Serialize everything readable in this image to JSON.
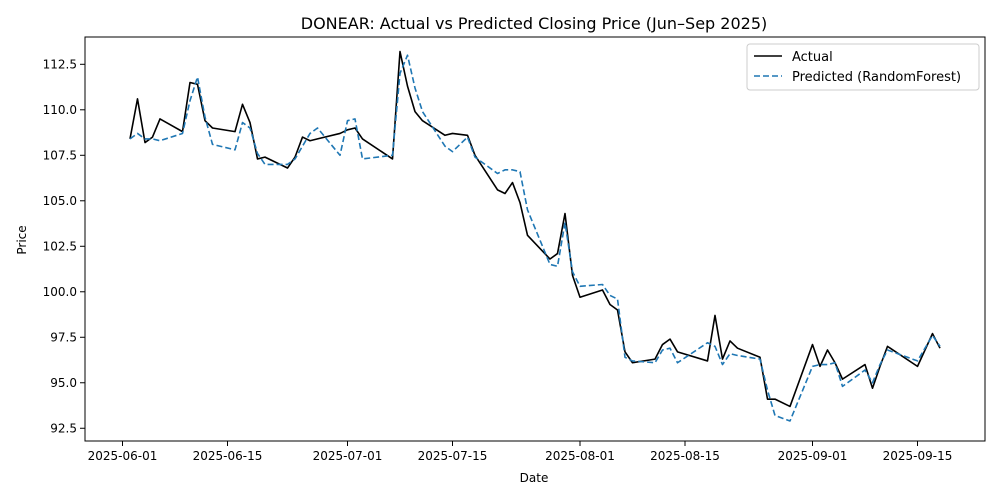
{
  "chart_data": {
    "type": "line",
    "title": "DONEAR: Actual vs Predicted Closing Price (Jun–Sep 2025)",
    "xlabel": "Date",
    "ylabel": "Price",
    "xlim": [
      "2025-05-27",
      "2025-09-24"
    ],
    "ylim": [
      91.8,
      114.0
    ],
    "x_ticks": [
      "2025-06-01",
      "2025-06-15",
      "2025-07-01",
      "2025-07-15",
      "2025-08-01",
      "2025-08-15",
      "2025-09-01",
      "2025-09-15"
    ],
    "y_ticks": [
      92.5,
      95.0,
      97.5,
      100.0,
      102.5,
      105.0,
      107.5,
      110.0,
      112.5
    ],
    "grid": false,
    "legend": "top-right",
    "series": [
      {
        "name": "Actual",
        "color": "#000000",
        "style": "solid",
        "points": [
          [
            "2025-06-02",
            108.4
          ],
          [
            "2025-06-03",
            110.6
          ],
          [
            "2025-06-04",
            108.2
          ],
          [
            "2025-06-05",
            108.5
          ],
          [
            "2025-06-06",
            109.5
          ],
          [
            "2025-06-09",
            108.8
          ],
          [
            "2025-06-10",
            111.5
          ],
          [
            "2025-06-11",
            111.4
          ],
          [
            "2025-06-12",
            109.4
          ],
          [
            "2025-06-13",
            109.0
          ],
          [
            "2025-06-16",
            108.8
          ],
          [
            "2025-06-17",
            110.3
          ],
          [
            "2025-06-18",
            109.3
          ],
          [
            "2025-06-19",
            107.3
          ],
          [
            "2025-06-20",
            107.4
          ],
          [
            "2025-06-23",
            106.8
          ],
          [
            "2025-06-24",
            107.4
          ],
          [
            "2025-06-25",
            108.5
          ],
          [
            "2025-06-26",
            108.3
          ],
          [
            "2025-06-27",
            108.4
          ],
          [
            "2025-06-30",
            108.7
          ],
          [
            "2025-07-01",
            108.9
          ],
          [
            "2025-07-02",
            109.0
          ],
          [
            "2025-07-03",
            108.4
          ],
          [
            "2025-07-07",
            107.3
          ],
          [
            "2025-07-08",
            113.2
          ],
          [
            "2025-07-09",
            111.3
          ],
          [
            "2025-07-10",
            109.9
          ],
          [
            "2025-07-11",
            109.4
          ],
          [
            "2025-07-14",
            108.6
          ],
          [
            "2025-07-15",
            108.7
          ],
          [
            "2025-07-17",
            108.6
          ],
          [
            "2025-07-18",
            107.5
          ],
          [
            "2025-07-21",
            105.6
          ],
          [
            "2025-07-22",
            105.4
          ],
          [
            "2025-07-23",
            106.0
          ],
          [
            "2025-07-24",
            104.9
          ],
          [
            "2025-07-25",
            103.1
          ],
          [
            "2025-07-28",
            101.8
          ],
          [
            "2025-07-29",
            102.1
          ],
          [
            "2025-07-30",
            104.3
          ],
          [
            "2025-07-31",
            100.9
          ],
          [
            "2025-08-01",
            99.7
          ],
          [
            "2025-08-04",
            100.1
          ],
          [
            "2025-08-05",
            99.3
          ],
          [
            "2025-08-06",
            99.0
          ],
          [
            "2025-08-07",
            96.7
          ],
          [
            "2025-08-08",
            96.1
          ],
          [
            "2025-08-11",
            96.3
          ],
          [
            "2025-08-12",
            97.1
          ],
          [
            "2025-08-13",
            97.4
          ],
          [
            "2025-08-14",
            96.7
          ],
          [
            "2025-08-18",
            96.2
          ],
          [
            "2025-08-19",
            98.7
          ],
          [
            "2025-08-20",
            96.3
          ],
          [
            "2025-08-21",
            97.3
          ],
          [
            "2025-08-22",
            96.9
          ],
          [
            "2025-08-25",
            96.4
          ],
          [
            "2025-08-26",
            94.1
          ],
          [
            "2025-08-27",
            94.1
          ],
          [
            "2025-08-29",
            93.7
          ],
          [
            "2025-09-01",
            97.1
          ],
          [
            "2025-09-02",
            95.9
          ],
          [
            "2025-09-03",
            96.8
          ],
          [
            "2025-09-04",
            96.1
          ],
          [
            "2025-09-05",
            95.2
          ],
          [
            "2025-09-08",
            96.0
          ],
          [
            "2025-09-09",
            94.7
          ],
          [
            "2025-09-10",
            95.9
          ],
          [
            "2025-09-11",
            97.0
          ],
          [
            "2025-09-15",
            95.9
          ],
          [
            "2025-09-17",
            97.7
          ],
          [
            "2025-09-18",
            96.9
          ]
        ]
      },
      {
        "name": "Predicted (RandomForest)",
        "color": "#1f77b4",
        "style": "dashed",
        "points": [
          [
            "2025-06-02",
            108.4
          ],
          [
            "2025-06-03",
            108.7
          ],
          [
            "2025-06-04",
            108.4
          ],
          [
            "2025-06-05",
            108.4
          ],
          [
            "2025-06-06",
            108.3
          ],
          [
            "2025-06-09",
            108.7
          ],
          [
            "2025-06-10",
            110.5
          ],
          [
            "2025-06-11",
            111.8
          ],
          [
            "2025-06-12",
            109.6
          ],
          [
            "2025-06-13",
            108.1
          ],
          [
            "2025-06-16",
            107.8
          ],
          [
            "2025-06-17",
            109.3
          ],
          [
            "2025-06-18",
            109.0
          ],
          [
            "2025-06-19",
            107.6
          ],
          [
            "2025-06-20",
            107.0
          ],
          [
            "2025-06-23",
            107.0
          ],
          [
            "2025-06-24",
            107.3
          ],
          [
            "2025-06-25",
            108.0
          ],
          [
            "2025-06-26",
            108.7
          ],
          [
            "2025-06-27",
            109.0
          ],
          [
            "2025-06-30",
            107.5
          ],
          [
            "2025-07-01",
            109.4
          ],
          [
            "2025-07-02",
            109.5
          ],
          [
            "2025-07-03",
            107.3
          ],
          [
            "2025-07-07",
            107.5
          ],
          [
            "2025-07-08",
            112.0
          ],
          [
            "2025-07-09",
            113.0
          ],
          [
            "2025-07-10",
            111.2
          ],
          [
            "2025-07-11",
            109.9
          ],
          [
            "2025-07-14",
            108.0
          ],
          [
            "2025-07-15",
            107.7
          ],
          [
            "2025-07-17",
            108.5
          ],
          [
            "2025-07-18",
            107.4
          ],
          [
            "2025-07-21",
            106.5
          ],
          [
            "2025-07-22",
            106.7
          ],
          [
            "2025-07-23",
            106.7
          ],
          [
            "2025-07-24",
            106.6
          ],
          [
            "2025-07-25",
            104.5
          ],
          [
            "2025-07-28",
            101.5
          ],
          [
            "2025-07-29",
            101.4
          ],
          [
            "2025-07-30",
            103.8
          ],
          [
            "2025-07-31",
            101.1
          ],
          [
            "2025-08-01",
            100.3
          ],
          [
            "2025-08-04",
            100.4
          ],
          [
            "2025-08-05",
            99.8
          ],
          [
            "2025-08-06",
            99.6
          ],
          [
            "2025-08-07",
            96.4
          ],
          [
            "2025-08-08",
            96.2
          ],
          [
            "2025-08-11",
            96.1
          ],
          [
            "2025-08-12",
            96.8
          ],
          [
            "2025-08-13",
            96.9
          ],
          [
            "2025-08-14",
            96.1
          ],
          [
            "2025-08-18",
            97.2
          ],
          [
            "2025-08-19",
            97.0
          ],
          [
            "2025-08-20",
            96.0
          ],
          [
            "2025-08-21",
            96.6
          ],
          [
            "2025-08-22",
            96.5
          ],
          [
            "2025-08-25",
            96.3
          ],
          [
            "2025-08-26",
            94.6
          ],
          [
            "2025-08-27",
            93.2
          ],
          [
            "2025-08-29",
            92.9
          ],
          [
            "2025-09-01",
            95.9
          ],
          [
            "2025-09-02",
            96.0
          ],
          [
            "2025-09-03",
            96.0
          ],
          [
            "2025-09-04",
            96.1
          ],
          [
            "2025-09-05",
            94.8
          ],
          [
            "2025-09-08",
            95.7
          ],
          [
            "2025-09-09",
            95.0
          ],
          [
            "2025-09-10",
            96.0
          ],
          [
            "2025-09-11",
            96.8
          ],
          [
            "2025-09-15",
            96.2
          ],
          [
            "2025-09-17",
            97.6
          ],
          [
            "2025-09-18",
            97.0
          ]
        ]
      }
    ]
  }
}
